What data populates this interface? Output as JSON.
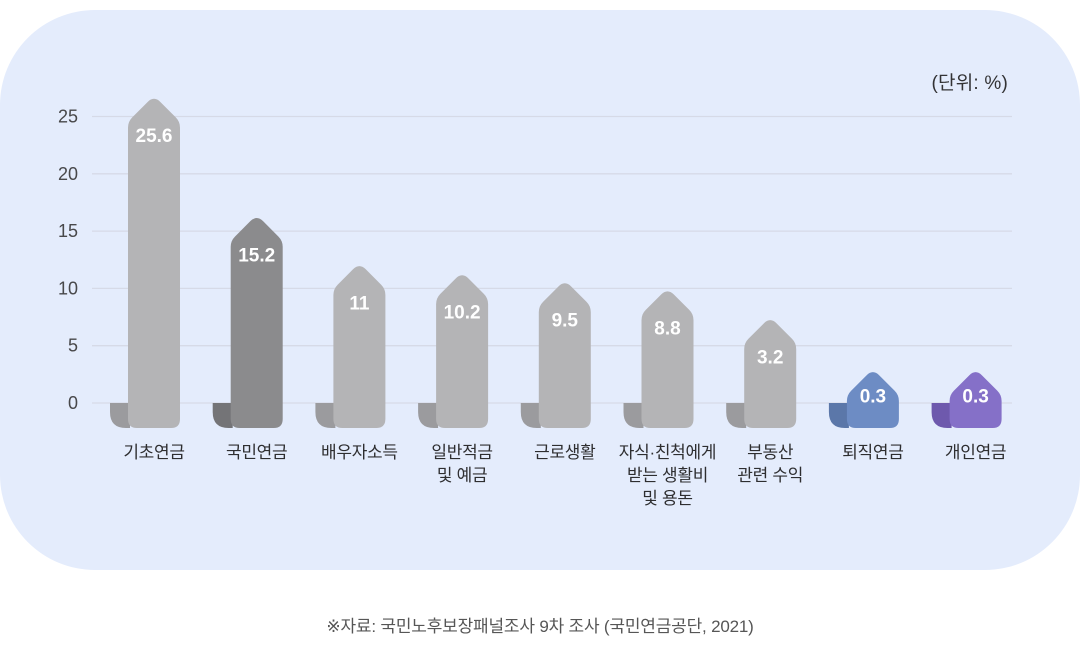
{
  "header": {
    "unit_label": "(단위: %)"
  },
  "footer": {
    "source_note": "※자료: 국민노후보장패널조사 9차 조사 (국민연금공단, 2021)"
  },
  "colors": {
    "page_bg": "#ffffff",
    "panel_bg": "#e4ecfc",
    "gridline": "#d6dae7",
    "tick_text": "#48484a",
    "unit_text": "#333335",
    "category_text": "#2e2e30",
    "value_text": "#ffffff",
    "source_text": "#565656",
    "bar_default": "#b4b4b6",
    "bar_default_fold": "#9b9b9e",
    "bar_highlight": "#8b8b8d",
    "bar_highlight_fold": "#747477",
    "bar_blue": "#6d8cc4",
    "bar_blue_fold": "#5b77a9",
    "bar_purple": "#8570c8",
    "bar_purple_fold": "#6e59ad"
  },
  "chart_data": {
    "type": "bar",
    "title": "",
    "unit": "%",
    "categories": [
      "기초연금",
      "국민연금",
      "배우자소득",
      "일반적금 및 예금",
      "근로생활",
      "자식·친척에게 받는 생활비 및 용돈",
      "부동산 관련 수익",
      "퇴직연금",
      "개인연금"
    ],
    "category_lines": [
      [
        "기초연금"
      ],
      [
        "국민연금"
      ],
      [
        "배우자소득"
      ],
      [
        "일반적금",
        "및 예금"
      ],
      [
        "근로생활"
      ],
      [
        "자식·친척에게",
        "받는 생활비",
        "및 용돈"
      ],
      [
        "부동산",
        "관련 수익"
      ],
      [
        "퇴직연금"
      ],
      [
        "개인연금"
      ]
    ],
    "values": [
      25.6,
      15.2,
      11,
      10.2,
      9.5,
      8.8,
      3.2,
      0.3,
      0.3
    ],
    "value_labels": [
      "25.6",
      "15.2",
      "11",
      "10.2",
      "9.5",
      "8.8",
      "3.2",
      "0.3",
      "0.3"
    ],
    "bar_styles": [
      "default",
      "highlight",
      "default",
      "default",
      "default",
      "default",
      "default",
      "blue",
      "purple"
    ],
    "y_ticks": [
      0,
      5,
      10,
      15,
      20,
      25
    ],
    "ylim": [
      0,
      27
    ],
    "grid": true,
    "legend": "none",
    "xlabel": "",
    "ylabel": ""
  }
}
